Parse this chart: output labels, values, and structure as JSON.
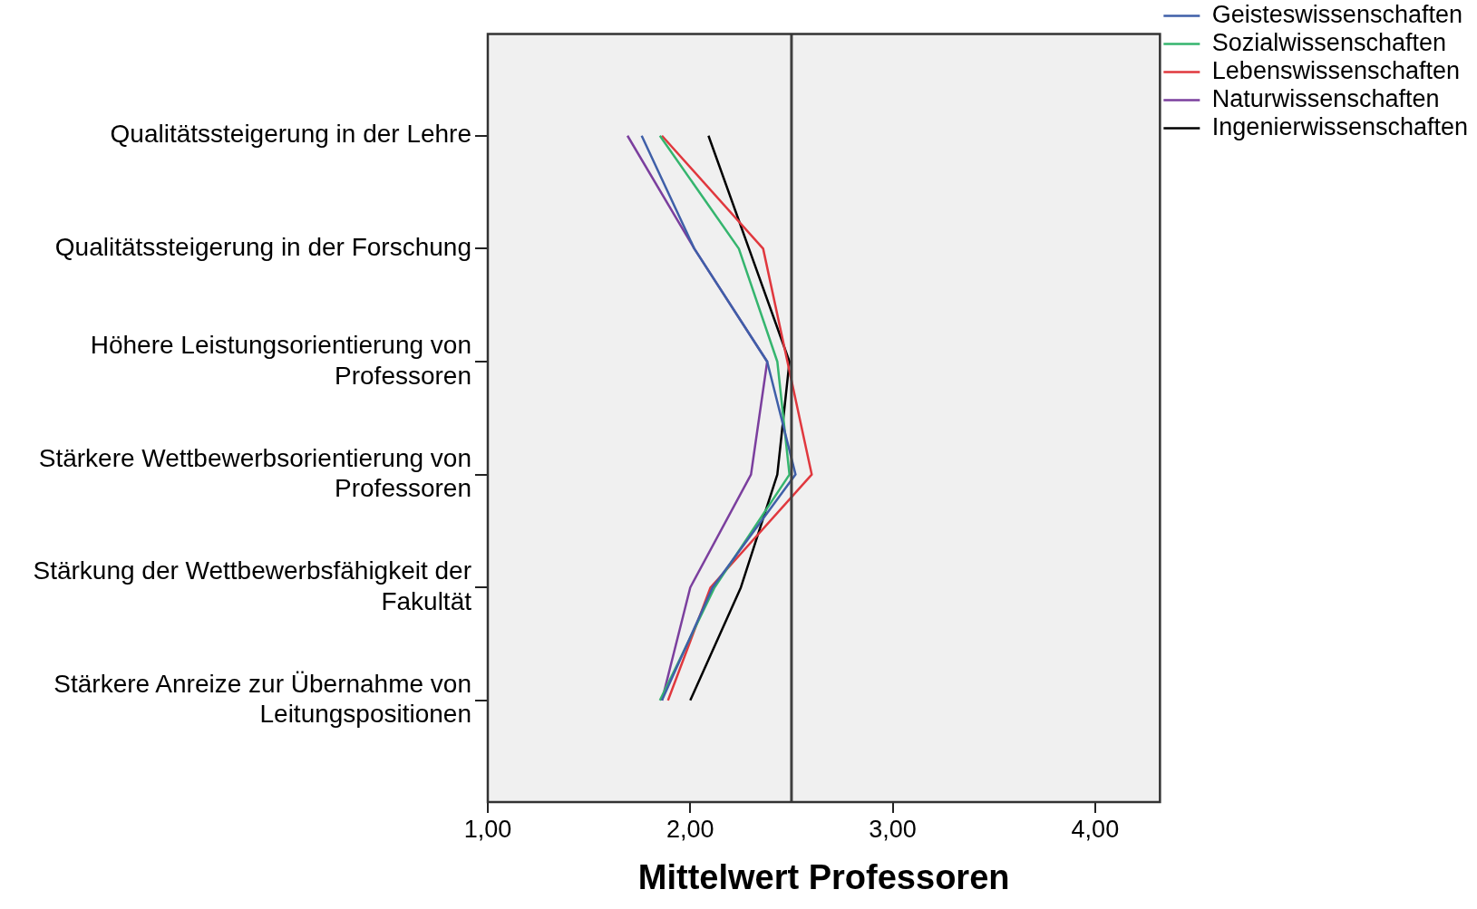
{
  "chart_data": {
    "type": "line",
    "orientation": "horizontal",
    "xlabel": "Mittelwert Professoren",
    "categories": [
      "Qualitätssteigerung in der Lehre",
      "Qualitätssteigerung in der Forschung",
      "Höhere Leistungsorientierung von Professoren",
      "Stärkere Wettbewerbsorientierung von Professoren",
      "Stärkung der Wettbewerbsfähigkeit der Fakultät",
      "Stärkere Anreize zur Übernahme von Leitungspositionen"
    ],
    "series": [
      {
        "name": "Geisteswissenschaften",
        "color": "#3f5fa8",
        "values": [
          1.76,
          2.02,
          2.38,
          2.52,
          2.11,
          1.86
        ]
      },
      {
        "name": "Sozialwissenschaften",
        "color": "#35b56e",
        "values": [
          1.85,
          2.24,
          2.43,
          2.49,
          2.12,
          1.85
        ]
      },
      {
        "name": "Lebenswissenschaften",
        "color": "#e0383e",
        "values": [
          1.86,
          2.36,
          2.48,
          2.6,
          2.1,
          1.89
        ]
      },
      {
        "name": "Naturwissenschaften",
        "color": "#7b3f9e",
        "values": [
          1.69,
          2.02,
          2.38,
          2.3,
          2.0,
          1.86
        ]
      },
      {
        "name": "Ingenierwissenschaften",
        "color": "#000000",
        "values": [
          2.09,
          2.29,
          2.49,
          2.43,
          2.25,
          2.0
        ]
      }
    ],
    "xlim": [
      1,
      4.32
    ],
    "xticks": [
      {
        "value": 1,
        "label": "1,00"
      },
      {
        "value": 2,
        "label": "2,00"
      },
      {
        "value": 3,
        "label": "3,00"
      },
      {
        "value": 4,
        "label": "4,00"
      }
    ],
    "ref_lines": [
      {
        "axis": "x",
        "value": 2.5,
        "color": "#404040"
      }
    ],
    "grid": false,
    "legend": "top right",
    "marker": "none",
    "line_style": "solid"
  }
}
